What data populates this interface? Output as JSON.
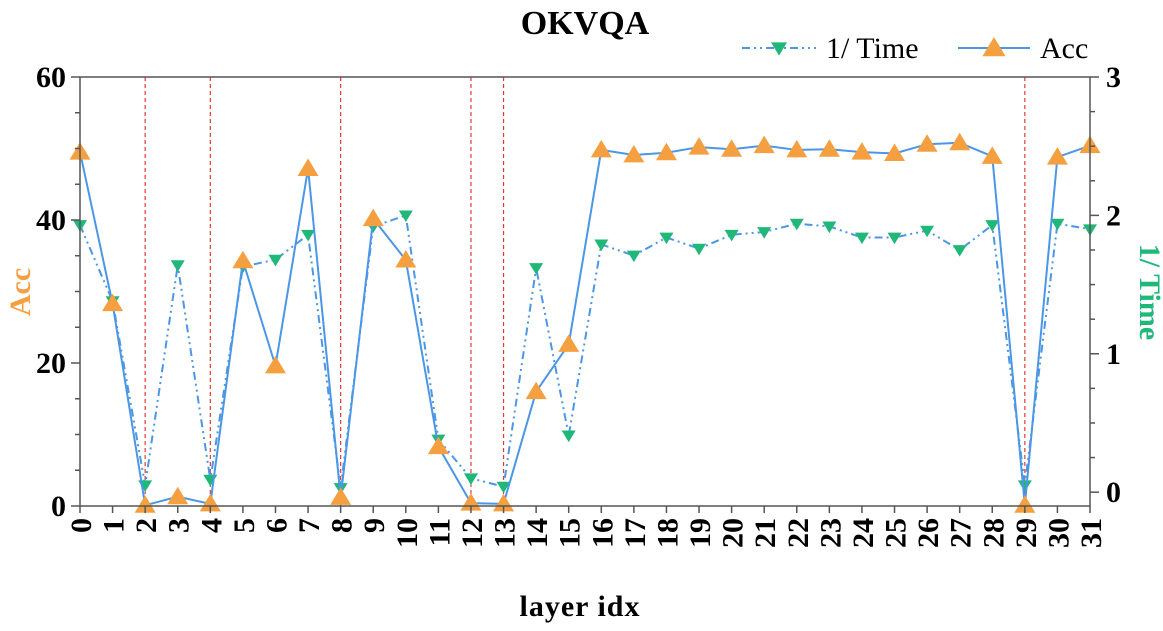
{
  "chart_data": {
    "type": "line",
    "title": "OKVQA",
    "xlabel": "layer idx",
    "ylabel_left": "Acc",
    "ylabel_right": "1/ Time",
    "ylim_left": [
      0,
      60
    ],
    "ylim_right": [
      -0.1,
      3
    ],
    "yticks_left": [
      0,
      20,
      40,
      60
    ],
    "yticks_right": [
      0,
      1,
      2,
      3
    ],
    "categories": [
      "0",
      "1",
      "2",
      "3",
      "4",
      "5",
      "6",
      "7",
      "8",
      "9",
      "10",
      "11",
      "12",
      "13",
      "14",
      "15",
      "16",
      "17",
      "18",
      "19",
      "20",
      "21",
      "22",
      "23",
      "24",
      "25",
      "26",
      "27",
      "28",
      "29",
      "30",
      "31"
    ],
    "x": [
      0,
      1,
      2,
      3,
      4,
      5,
      6,
      7,
      8,
      9,
      10,
      11,
      12,
      13,
      14,
      15,
      16,
      17,
      18,
      19,
      20,
      21,
      22,
      23,
      24,
      25,
      26,
      27,
      28,
      29,
      30,
      31
    ],
    "series": [
      {
        "name": "1/ Time",
        "axis": "right",
        "color": "#4c96e6",
        "marker_color": "#1fb878",
        "marker": "triangle-down",
        "line_style": "dash-dot-dot",
        "values": [
          1.93,
          1.38,
          0.05,
          1.64,
          0.09,
          1.63,
          1.68,
          1.86,
          0.03,
          1.92,
          2.0,
          0.38,
          0.1,
          0.04,
          1.62,
          0.41,
          1.79,
          1.71,
          1.84,
          1.76,
          1.86,
          1.88,
          1.94,
          1.92,
          1.84,
          1.84,
          1.89,
          1.75,
          1.93,
          0.05,
          1.94,
          1.9
        ]
      },
      {
        "name": "Acc",
        "axis": "left",
        "color": "#4c96e6",
        "marker_color": "#f5a040",
        "marker": "triangle-up",
        "line_style": "solid",
        "values": [
          49.5,
          28.3,
          0.1,
          1.3,
          0.3,
          34.3,
          19.6,
          47.2,
          1.2,
          40.2,
          34.4,
          8.3,
          0.4,
          0.3,
          16.0,
          22.6,
          49.8,
          49.1,
          49.4,
          50.2,
          49.9,
          50.4,
          49.8,
          49.9,
          49.5,
          49.3,
          50.6,
          50.8,
          48.9,
          0.1,
          48.8,
          50.4
        ]
      }
    ],
    "highlight_layers": [
      2,
      4,
      8,
      12,
      13,
      29
    ],
    "highlight_color": "#e53935",
    "legend_position": "top-right",
    "left_label_color": "#f5a040",
    "right_label_color": "#1fb878"
  }
}
